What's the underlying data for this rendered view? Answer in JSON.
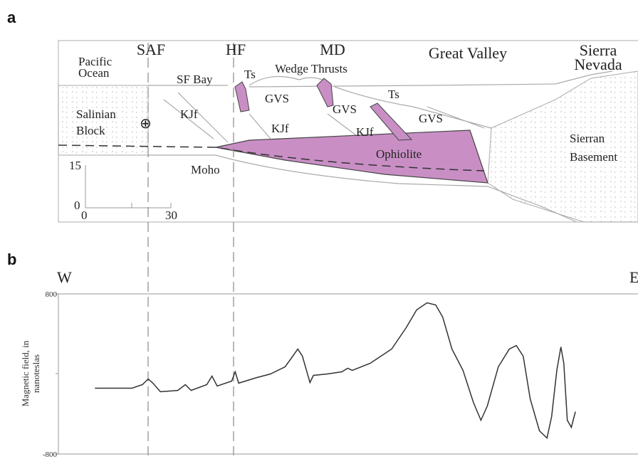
{
  "panels": {
    "a": "a",
    "b": "b"
  },
  "cross_section": {
    "labels": [
      "Pacific",
      "Ocean",
      "SAF",
      "HF",
      "MD",
      "Great Valley",
      "Sierra",
      "Nevada",
      "SF Bay",
      "Ts",
      "Wedge Thrusts",
      "GVS",
      "GVS",
      "Ts",
      "GVS",
      "Salinian",
      "Block",
      "KJf",
      "KJf",
      "KJf",
      "Ophiolite",
      "Sierran",
      "Basement",
      "Moho"
    ],
    "scale": [
      "15",
      "0",
      "0",
      "30"
    ]
  },
  "chart_data": {
    "type": "line",
    "y_label": [
      "Magnetic field, in",
      "nanoteslas"
    ],
    "direction": [
      "W",
      "E"
    ],
    "x": [
      6.3,
      9.6,
      12.7,
      14.5,
      15.5,
      16.3,
      17.6,
      20.6,
      21.9,
      22.9,
      25.6,
      26.5,
      27.4,
      29.9,
      30.5,
      31.1,
      34.2,
      36.6,
      39.1,
      40.0,
      41.3,
      42.1,
      42.8,
      43.4,
      44.0,
      46.4,
      48.9,
      49.9,
      50.7,
      53.8,
      57.5,
      60.0,
      61.8,
      63.6,
      65.1,
      66.3,
      67.9,
      69.8,
      71.6,
      72.9,
      74.0,
      75.9,
      77.8,
      79.0,
      80.2,
      81.4,
      83.0,
      84.3,
      85.1,
      86.0,
      86.7,
      87.2,
      87.8,
      88.5,
      89.2
    ],
    "values": [
      -142,
      -142,
      -142,
      -107,
      -50,
      -92,
      -178,
      -164,
      -107,
      -164,
      -107,
      -21,
      -121,
      -71,
      21,
      -92,
      -36,
      0,
      71,
      142,
      249,
      178,
      36,
      -85,
      -14,
      0,
      21,
      57,
      36,
      107,
      249,
      462,
      640,
      711,
      690,
      569,
      249,
      36,
      -284,
      -462,
      -320,
      71,
      249,
      284,
      178,
      -249,
      -569,
      -640,
      -427,
      36,
      270,
      107,
      -462,
      -533,
      -377
    ],
    "xlim": [
      0,
      100
    ],
    "ylim": [
      -800,
      800
    ],
    "yticks": [
      800,
      -800
    ],
    "color": "#333333"
  }
}
